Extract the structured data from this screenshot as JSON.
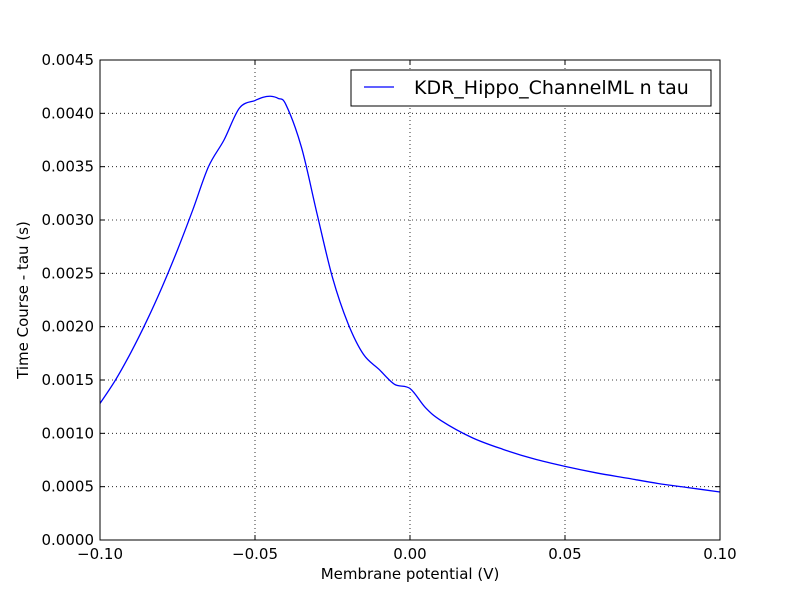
{
  "chart_data": {
    "type": "line",
    "title": "",
    "xlabel": "Membrane potential (V)",
    "ylabel": "Time Course - tau (s)",
    "xlim": [
      -0.1,
      0.1
    ],
    "ylim": [
      0.0,
      0.0045
    ],
    "grid": true,
    "legend_position": "upper right",
    "x_tick_labels": [
      "−0.10",
      "−0.05",
      "0.00",
      "0.05",
      "0.10"
    ],
    "x_tick_values": [
      -0.1,
      -0.05,
      0.0,
      0.05,
      0.1
    ],
    "y_tick_labels": [
      "0.0000",
      "0.0005",
      "0.0010",
      "0.0015",
      "0.0020",
      "0.0025",
      "0.0030",
      "0.0035",
      "0.0040",
      "0.0045"
    ],
    "y_tick_values": [
      0.0,
      0.0005,
      0.001,
      0.0015,
      0.002,
      0.0025,
      0.003,
      0.0035,
      0.004,
      0.0045
    ],
    "series": [
      {
        "name": "KDR_Hippo_ChannelML n tau",
        "color": "#0000ff",
        "x": [
          -0.1,
          -0.095,
          -0.09,
          -0.085,
          -0.08,
          -0.075,
          -0.07,
          -0.065,
          -0.06,
          -0.055,
          -0.05,
          -0.0475,
          -0.045,
          -0.0425,
          -0.04,
          -0.035,
          -0.03,
          -0.025,
          -0.02,
          -0.015,
          -0.01,
          -0.005,
          0.0,
          0.005,
          0.01,
          0.02,
          0.03,
          0.04,
          0.05,
          0.06,
          0.07,
          0.08,
          0.09,
          0.1
        ],
        "y": [
          0.00128,
          0.0015,
          0.00176,
          0.00205,
          0.00237,
          0.00272,
          0.0031,
          0.0035,
          0.00375,
          0.00405,
          0.00412,
          0.00415,
          0.00416,
          0.00414,
          0.00408,
          0.00368,
          0.00306,
          0.00246,
          0.00203,
          0.00174,
          0.0016,
          0.00146,
          0.00142,
          0.00124,
          0.00112,
          0.00096,
          0.00085,
          0.00076,
          0.00069,
          0.00063,
          0.00058,
          0.00053,
          0.00049,
          0.00045
        ]
      }
    ]
  }
}
